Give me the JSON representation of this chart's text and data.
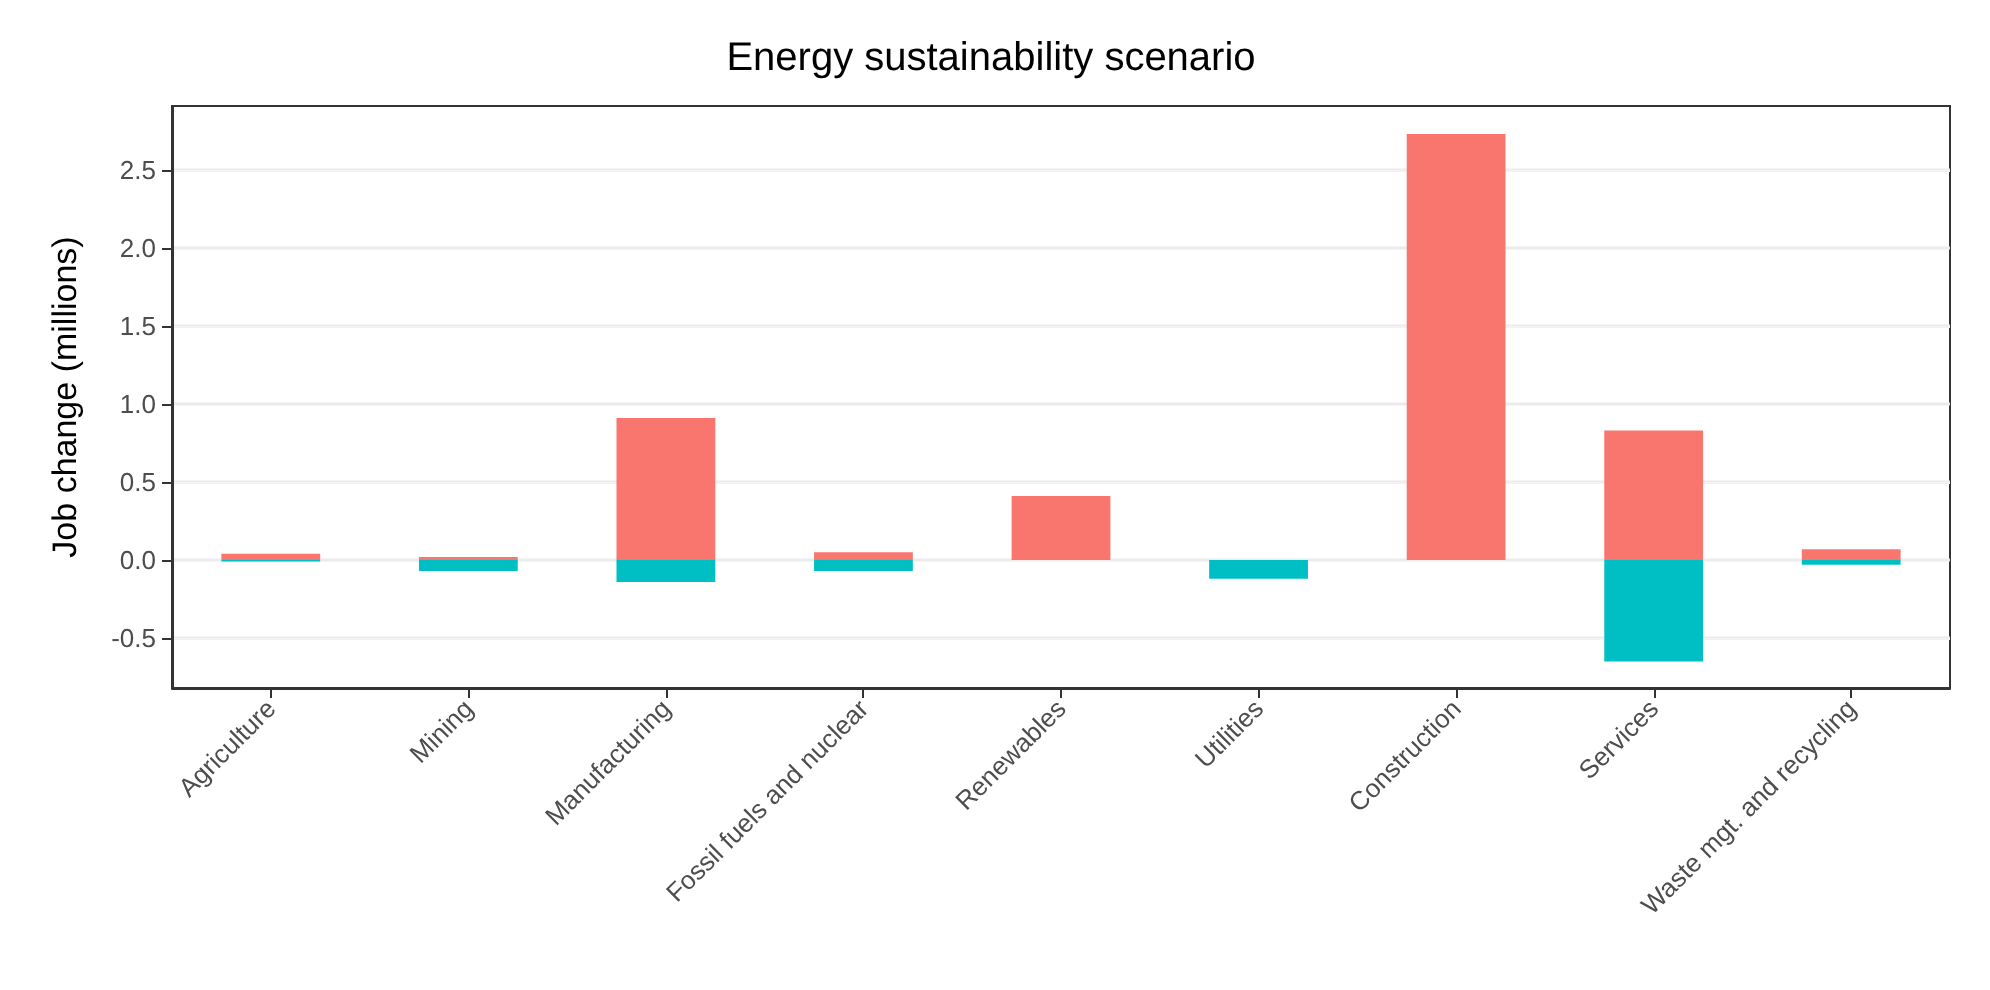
{
  "chart_data": {
    "type": "bar",
    "title": "Energy sustainability scenario",
    "ylabel": "Job change (millions)",
    "categories": [
      "Agriculture",
      "Mining",
      "Manufacturing",
      "Fossil fuels and nuclear",
      "Renewables",
      "Utilities",
      "Construction",
      "Services",
      "Waste mgt. and recycling"
    ],
    "series": [
      {
        "color": "#f8766d",
        "values": [
          0.04,
          0.02,
          0.91,
          0.05,
          0.41,
          0,
          2.73,
          0.83,
          0.07
        ]
      },
      {
        "color": "#00bfc4",
        "values": [
          -0.01,
          -0.07,
          -0.14,
          -0.07,
          0,
          -0.12,
          0,
          -0.65,
          -0.03
        ]
      }
    ],
    "stacked": true,
    "ylim": [
      -0.82,
      2.91
    ],
    "yticks": [
      -0.5,
      {
        "value": 0,
        "label": "0.0"
      },
      0.5,
      {
        "value": 1,
        "label": "1.0"
      },
      1.5,
      {
        "value": 2,
        "label": "2.0"
      },
      2.5
    ],
    "grid": "y"
  }
}
